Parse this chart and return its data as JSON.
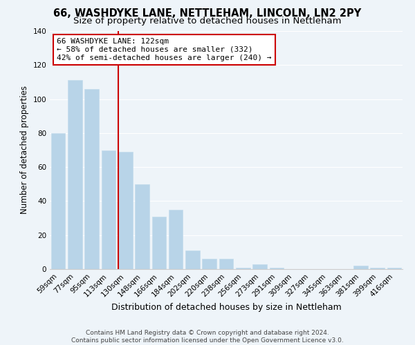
{
  "title": "66, WASHDYKE LANE, NETTLEHAM, LINCOLN, LN2 2PY",
  "subtitle": "Size of property relative to detached houses in Nettleham",
  "xlabel": "Distribution of detached houses by size in Nettleham",
  "ylabel": "Number of detached properties",
  "bar_labels": [
    "59sqm",
    "77sqm",
    "95sqm",
    "113sqm",
    "130sqm",
    "148sqm",
    "166sqm",
    "184sqm",
    "202sqm",
    "220sqm",
    "238sqm",
    "256sqm",
    "273sqm",
    "291sqm",
    "309sqm",
    "327sqm",
    "345sqm",
    "363sqm",
    "381sqm",
    "399sqm",
    "416sqm"
  ],
  "bar_values": [
    80,
    111,
    106,
    70,
    69,
    50,
    31,
    35,
    11,
    6,
    6,
    1,
    3,
    1,
    0,
    0,
    0,
    0,
    2,
    1,
    1
  ],
  "bar_color": "#b8d4e8",
  "bar_edge_color": "#c5dced",
  "vline_color": "#cc0000",
  "annotation_text": "66 WASHDYKE LANE: 122sqm\n← 58% of detached houses are smaller (332)\n42% of semi-detached houses are larger (240) →",
  "annotation_box_facecolor": "#ffffff",
  "annotation_box_edgecolor": "#cc0000",
  "ylim": [
    0,
    140
  ],
  "yticks": [
    0,
    20,
    40,
    60,
    80,
    100,
    120,
    140
  ],
  "footer_line1": "Contains HM Land Registry data © Crown copyright and database right 2024.",
  "footer_line2": "Contains public sector information licensed under the Open Government Licence v3.0.",
  "background_color": "#eef4f9",
  "grid_color": "#ffffff",
  "title_fontsize": 10.5,
  "subtitle_fontsize": 9.5,
  "xlabel_fontsize": 9,
  "ylabel_fontsize": 8.5,
  "tick_fontsize": 7.5,
  "annotation_fontsize": 8,
  "footer_fontsize": 6.5,
  "vline_pos": 3.57
}
